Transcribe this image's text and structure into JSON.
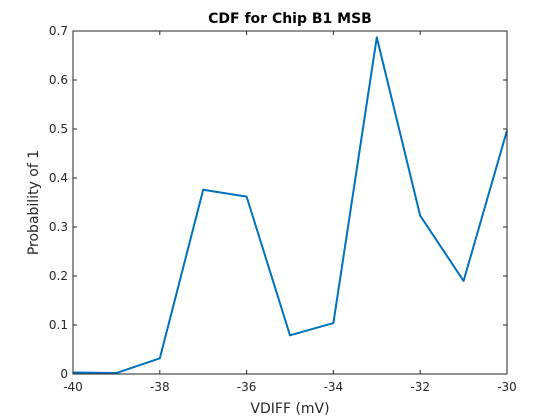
{
  "chart_data": {
    "type": "line",
    "title": "CDF for Chip B1 MSB",
    "xlabel": "VDIFF (mV)",
    "ylabel": "Probability of 1",
    "xlim": [
      -40,
      -30
    ],
    "ylim": [
      0,
      0.7
    ],
    "xticks": [
      -40,
      -38,
      -36,
      -34,
      -32,
      -30
    ],
    "yticks": [
      0,
      0.1,
      0.2,
      0.3,
      0.4,
      0.5,
      0.6,
      0.7
    ],
    "x_tick_labels": [
      "-40",
      "-38",
      "-36",
      "-34",
      "-32",
      "-30"
    ],
    "y_tick_labels": [
      "0",
      "0.1",
      "0.2",
      "0.3",
      "0.4",
      "0.5",
      "0.6",
      "0.7"
    ],
    "grid": false,
    "series": [
      {
        "color": "#0072BD",
        "x": [
          -40,
          -39,
          -38,
          -37,
          -36,
          -35,
          -34,
          -33,
          -32,
          -31,
          -30
        ],
        "y": [
          0.003,
          0.002,
          0.032,
          0.376,
          0.362,
          0.079,
          0.104,
          0.687,
          0.323,
          0.19,
          0.497
        ]
      }
    ]
  }
}
